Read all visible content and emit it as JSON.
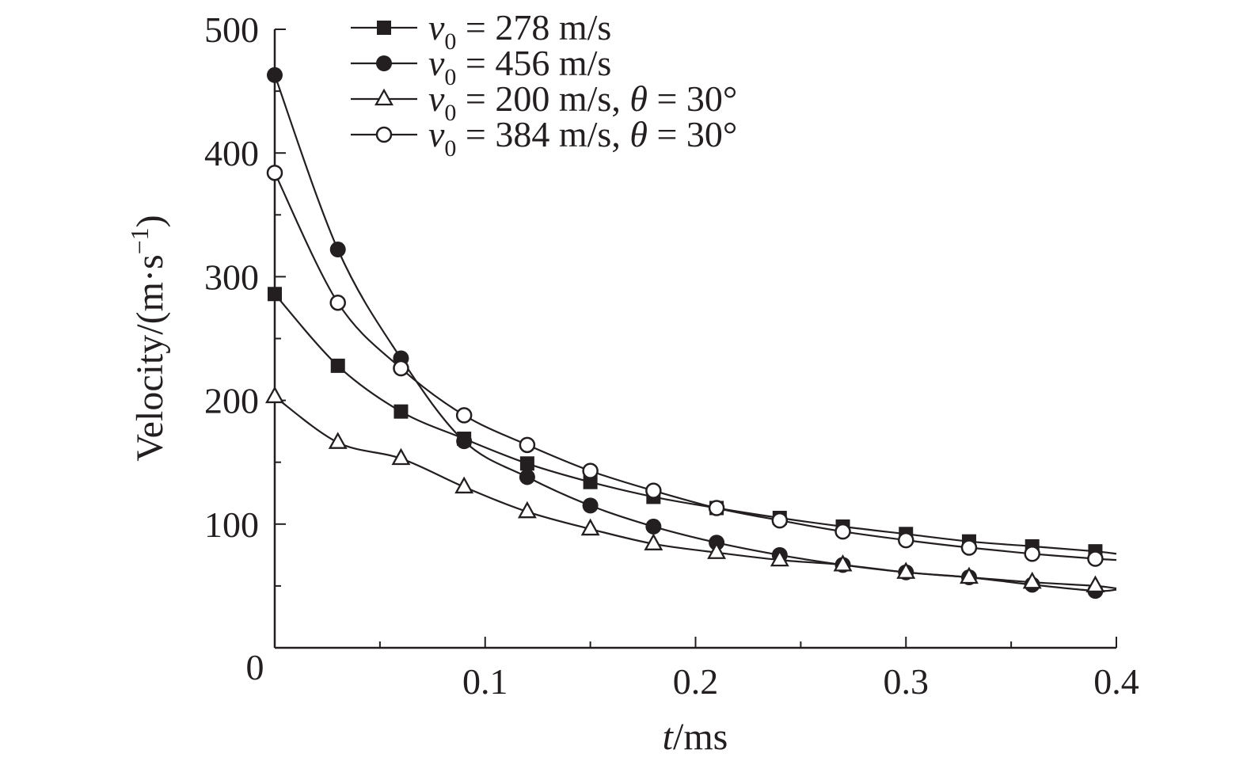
{
  "chart_data": {
    "type": "line",
    "xlabel": {
      "var": "t",
      "unit": "/ms"
    },
    "ylabel": {
      "base": "Velocity/(m·s",
      "sup": "−1",
      "close": ")"
    },
    "xlim": [
      0,
      0.4
    ],
    "ylim": [
      0,
      500
    ],
    "x_ticks": [
      0.1,
      0.2,
      0.3,
      0.4
    ],
    "x_tick_labels": [
      "0.1",
      "0.2",
      "0.3",
      "0.4"
    ],
    "x_minor_ticks": [
      0.05,
      0.15,
      0.25,
      0.35
    ],
    "y_ticks": [
      100,
      200,
      300,
      400,
      500
    ],
    "y_tick_labels": [
      "100",
      "200",
      "300",
      "400",
      "500"
    ],
    "y_minor_ticks": [
      50,
      150,
      250,
      350,
      450
    ],
    "origin_label": "0",
    "grid": false,
    "legend_position": "top-center",
    "series": [
      {
        "name": "v0 = 278 m/s",
        "legend": {
          "var": "v",
          "sub": "0",
          "rest": " = 278 m/s"
        },
        "marker": "filled-square",
        "x": [
          0.0,
          0.03,
          0.06,
          0.09,
          0.12,
          0.15,
          0.18,
          0.21,
          0.24,
          0.27,
          0.3,
          0.33,
          0.36,
          0.39,
          0.4
        ],
        "y": [
          286,
          228,
          191,
          169,
          149,
          134,
          122,
          113,
          105,
          98,
          92,
          86,
          82,
          78,
          76
        ]
      },
      {
        "name": "v0 = 456 m/s",
        "legend": {
          "var": "v",
          "sub": "0",
          "rest": " = 456 m/s"
        },
        "marker": "filled-circle",
        "x": [
          0.0,
          0.03,
          0.06,
          0.09,
          0.12,
          0.15,
          0.18,
          0.21,
          0.24,
          0.27,
          0.3,
          0.33,
          0.36,
          0.39,
          0.4
        ],
        "y": [
          463,
          322,
          234,
          167,
          138,
          115,
          98,
          85,
          75,
          67,
          61,
          57,
          51,
          46,
          47
        ]
      },
      {
        "name": "v0 = 200 m/s, θ = 30°",
        "legend": {
          "var": "v",
          "sub": "0",
          "rest": " = 200 m/s, ",
          "var2": "θ",
          "rest2": " = 30°"
        },
        "marker": "open-triangle",
        "x": [
          0.0,
          0.03,
          0.06,
          0.09,
          0.12,
          0.15,
          0.18,
          0.21,
          0.24,
          0.27,
          0.3,
          0.33,
          0.36,
          0.39,
          0.4
        ],
        "y": [
          203,
          166,
          153,
          130,
          110,
          96,
          84,
          77,
          71,
          67,
          61,
          57,
          53,
          50,
          48
        ]
      },
      {
        "name": "v0 = 384 m/s, θ = 30°",
        "legend": {
          "var": "v",
          "sub": "0",
          "rest": " = 384 m/s, ",
          "var2": "θ",
          "rest2": " = 30°"
        },
        "marker": "open-circle",
        "x": [
          0.0,
          0.03,
          0.06,
          0.09,
          0.12,
          0.15,
          0.18,
          0.21,
          0.24,
          0.27,
          0.3,
          0.33,
          0.36,
          0.39,
          0.4
        ],
        "y": [
          384,
          279,
          226,
          188,
          164,
          143,
          127,
          113,
          103,
          94,
          87,
          81,
          76,
          72,
          71
        ]
      }
    ]
  }
}
